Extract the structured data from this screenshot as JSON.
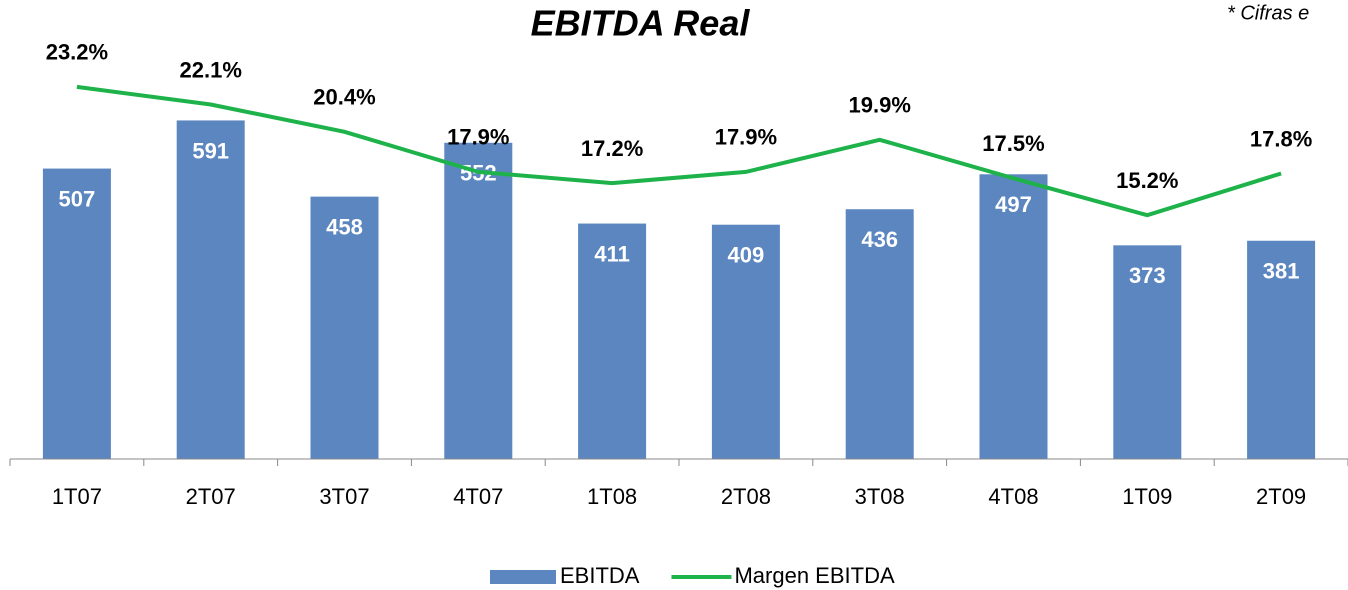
{
  "chart_data": {
    "type": "bar",
    "title": "EBITDA Real",
    "annotation": "* Cifras e",
    "categories": [
      "1T07",
      "2T07",
      "3T07",
      "4T07",
      "1T08",
      "2T08",
      "3T08",
      "4T08",
      "1T09",
      "2T09"
    ],
    "series": [
      {
        "name": "EBITDA",
        "color": "#5b86c0",
        "values": [
          507,
          591,
          458,
          552,
          411,
          409,
          436,
          497,
          373,
          381
        ]
      },
      {
        "name": "Margen EBITDA",
        "color": "#1db34a",
        "axis": "y2",
        "values": [
          23.2,
          22.1,
          20.4,
          17.9,
          17.2,
          17.9,
          19.9,
          17.5,
          15.2,
          17.8
        ],
        "value_labels": [
          "23.2%",
          "22.1%",
          "20.4%",
          "17.9%",
          "17.2%",
          "17.9%",
          "19.9%",
          "17.5%",
          "15.2%",
          "17.8%"
        ]
      }
    ],
    "ylim": [
      0,
      700
    ],
    "y2lim": [
      0,
      25
    ],
    "legend": "bottom"
  }
}
